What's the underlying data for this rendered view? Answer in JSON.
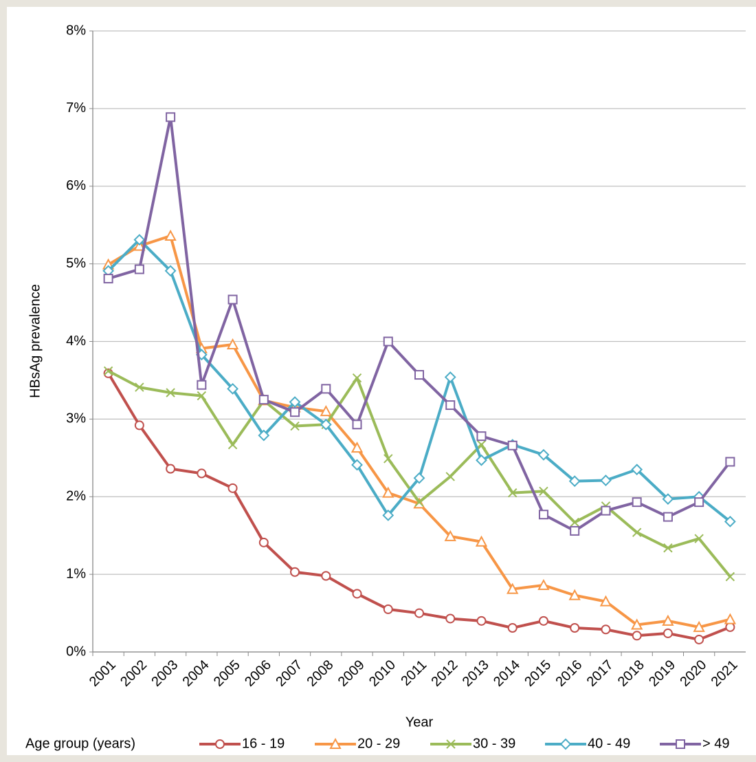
{
  "chart_data": {
    "type": "line",
    "x_label": "Year",
    "y_label": "HBsAg prevalence",
    "legend_title": "Age group (years)",
    "categories": [
      "2001",
      "2002",
      "2003",
      "2004",
      "2005",
      "2006",
      "2007",
      "2008",
      "2009",
      "2010",
      "2011",
      "2012",
      "2013",
      "2014",
      "2015",
      "2016",
      "2017",
      "2018",
      "2019",
      "2020",
      "2021"
    ],
    "series": [
      {
        "name": "16 - 19",
        "color": "#c0504d",
        "marker": "circle",
        "values": [
          3.59,
          2.92,
          2.36,
          2.3,
          2.11,
          1.41,
          1.03,
          0.98,
          0.75,
          0.55,
          0.5,
          0.43,
          0.4,
          0.31,
          0.4,
          0.31,
          0.29,
          0.21,
          0.24,
          0.16,
          0.32
        ]
      },
      {
        "name": "20 - 29",
        "color": "#f79646",
        "marker": "triangle",
        "values": [
          4.99,
          5.23,
          5.36,
          3.91,
          3.96,
          3.24,
          3.15,
          3.1,
          2.63,
          2.05,
          1.91,
          1.49,
          1.42,
          0.81,
          0.86,
          0.73,
          0.65,
          0.35,
          0.4,
          0.32,
          0.42
        ]
      },
      {
        "name": "30 - 39",
        "color": "#9bbb59",
        "marker": "x",
        "values": [
          3.62,
          3.41,
          3.34,
          3.3,
          2.67,
          3.24,
          2.91,
          2.93,
          3.53,
          2.49,
          1.93,
          2.26,
          2.67,
          2.05,
          2.07,
          1.67,
          1.88,
          1.54,
          1.34,
          1.46,
          0.97
        ]
      },
      {
        "name": "40 - 49",
        "color": "#4bacc6",
        "marker": "diamond",
        "values": [
          4.91,
          5.31,
          4.91,
          3.83,
          3.39,
          2.79,
          3.22,
          2.93,
          2.41,
          1.76,
          2.24,
          3.54,
          2.47,
          2.67,
          2.54,
          2.2,
          2.21,
          2.35,
          1.97,
          2.0,
          1.68
        ]
      },
      {
        "name": "> 49",
        "color": "#8064a2",
        "marker": "square",
        "values": [
          4.81,
          4.93,
          6.89,
          3.44,
          4.54,
          3.25,
          3.09,
          3.39,
          2.93,
          4.0,
          3.57,
          3.18,
          2.78,
          2.66,
          1.77,
          1.56,
          1.82,
          1.93,
          1.74,
          1.93,
          2.45
        ]
      }
    ],
    "ylim": [
      0,
      8
    ],
    "yticks": [
      {
        "value": 0,
        "label": "0%"
      },
      {
        "value": 1,
        "label": "1%"
      },
      {
        "value": 2,
        "label": "2%"
      },
      {
        "value": 3,
        "label": "3%"
      },
      {
        "value": 4,
        "label": "4%"
      },
      {
        "value": 5,
        "label": "5%"
      },
      {
        "value": 6,
        "label": "6%"
      },
      {
        "value": 7,
        "label": "7%"
      },
      {
        "value": 8,
        "label": "8%"
      }
    ],
    "grid": true,
    "legend": "bottom"
  }
}
